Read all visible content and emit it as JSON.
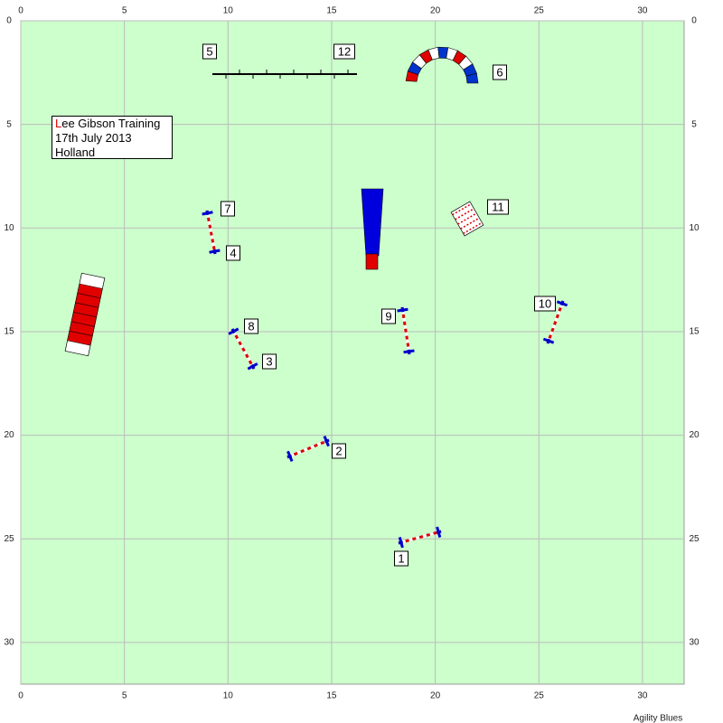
{
  "axis": {
    "ticks": [
      0,
      5,
      10,
      15,
      20,
      25,
      30
    ]
  },
  "info": {
    "lines": [
      "Lee Gibson Training",
      "17th July 2013",
      "Holland"
    ]
  },
  "obstacles": [
    {
      "label": "1"
    },
    {
      "label": "2"
    },
    {
      "label": "3"
    },
    {
      "label": "4"
    },
    {
      "label": "5"
    },
    {
      "label": "6"
    },
    {
      "label": "7"
    },
    {
      "label": "8"
    },
    {
      "label": "9"
    },
    {
      "label": "10"
    },
    {
      "label": "11"
    },
    {
      "label": "12"
    }
  ],
  "footer": "Agility Blues"
}
